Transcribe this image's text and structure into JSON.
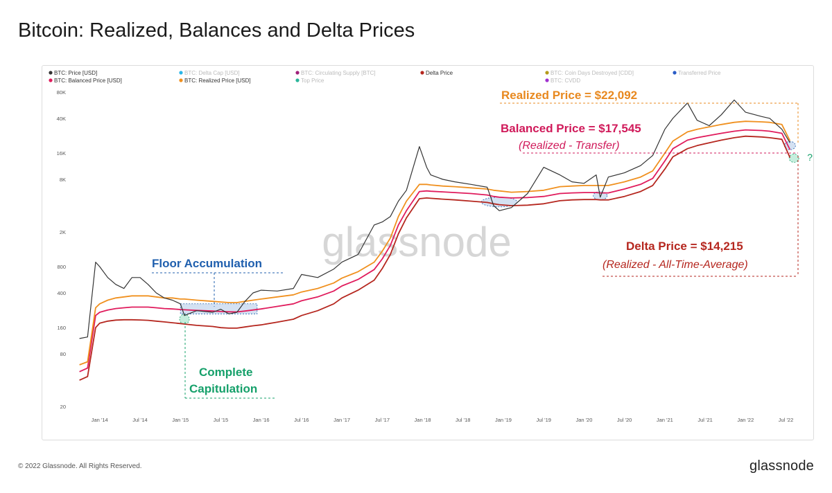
{
  "page": {
    "title": "Bitcoin: Realized, Balances and Delta Prices",
    "copyright": "© 2022 Glassnode. All Rights Reserved.",
    "logo": "glassnode",
    "watermark": "glassnode"
  },
  "chart_data": {
    "type": "line",
    "y_scale": "log",
    "ylim": [
      20,
      80000
    ],
    "y_ticks": [
      {
        "value": 20,
        "label": "20"
      },
      {
        "value": 80,
        "label": "80"
      },
      {
        "value": 160,
        "label": "160"
      },
      {
        "value": 400,
        "label": "400"
      },
      {
        "value": 800,
        "label": "800"
      },
      {
        "value": 2000,
        "label": "2K"
      },
      {
        "value": 8000,
        "label": "8K"
      },
      {
        "value": 16000,
        "label": "16K"
      },
      {
        "value": 40000,
        "label": "40K"
      },
      {
        "value": 80000,
        "label": "80K"
      }
    ],
    "x_ticks": [
      "Jan '14",
      "Jul '14",
      "Jan '15",
      "Jul '15",
      "Jan '16",
      "Jul '16",
      "Jan '17",
      "Jul '17",
      "Jan '18",
      "Jul '18",
      "Jan '19",
      "Jul '19",
      "Jan '20",
      "Jul '20",
      "Jan '21",
      "Jul '21",
      "Jan '22",
      "Jul '22"
    ],
    "legend": [
      {
        "label": "BTC: Price [USD]",
        "color": "#333333",
        "active": true
      },
      {
        "label": "BTC: Delta Cap [USD]",
        "color": "#29b6e8",
        "active": false
      },
      {
        "label": "BTC: Circulating Supply [BTC]",
        "color": "#a0207a",
        "active": false
      },
      {
        "label": "Delta Price",
        "color": "#b5261e",
        "active": true
      },
      {
        "label": "BTC: Coin Days Destroyed [CDD]",
        "color": "#b59a1a",
        "active": false
      },
      {
        "label": "Transferred Price",
        "color": "#2a5cc6",
        "active": false
      },
      {
        "label": "BTC: Balanced Price [USD]",
        "color": "#e01b5c",
        "active": true
      },
      {
        "label": "BTC: Realized Price [USD]",
        "color": "#f0901e",
        "active": true
      },
      {
        "label": "Top Price",
        "color": "#2ab59a",
        "active": false
      },
      {
        "label": "BTC: CVDD",
        "color": "#a030d0",
        "active": false
      }
    ],
    "x": [
      2013.75,
      2013.85,
      2013.95,
      2014.0,
      2014.1,
      2014.2,
      2014.3,
      2014.4,
      2014.5,
      2014.6,
      2014.7,
      2014.8,
      2014.9,
      2015.0,
      2015.05,
      2015.2,
      2015.4,
      2015.5,
      2015.6,
      2015.7,
      2015.8,
      2015.9,
      2016.0,
      2016.2,
      2016.4,
      2016.5,
      2016.7,
      2016.9,
      2017.0,
      2017.2,
      2017.4,
      2017.5,
      2017.6,
      2017.7,
      2017.8,
      2017.96,
      2018.05,
      2018.1,
      2018.25,
      2018.4,
      2018.6,
      2018.8,
      2018.88,
      2018.95,
      2019.1,
      2019.3,
      2019.5,
      2019.7,
      2019.85,
      2020.0,
      2020.15,
      2020.2,
      2020.3,
      2020.5,
      2020.7,
      2020.85,
      2021.0,
      2021.1,
      2021.28,
      2021.4,
      2021.55,
      2021.7,
      2021.86,
      2022.0,
      2022.2,
      2022.3,
      2022.45,
      2022.55
    ],
    "series": [
      {
        "name": "BTC: Price [USD]",
        "color": "#333333",
        "values": [
          120,
          125,
          900,
          800,
          600,
          500,
          450,
          600,
          600,
          500,
          400,
          350,
          330,
          300,
          220,
          250,
          240,
          260,
          230,
          240,
          320,
          400,
          430,
          420,
          450,
          650,
          600,
          750,
          900,
          1100,
          2400,
          2600,
          3000,
          4500,
          6000,
          19000,
          11000,
          9000,
          8000,
          7500,
          7000,
          6500,
          4000,
          3500,
          3800,
          5500,
          11000,
          9000,
          7500,
          7200,
          9000,
          5000,
          8500,
          9500,
          11500,
          15000,
          30000,
          40000,
          60000,
          38000,
          33000,
          44000,
          65000,
          47000,
          42000,
          40000,
          30000,
          21000
        ]
      },
      {
        "name": "BTC: Realized Price [USD]",
        "color": "#f0901e",
        "values": [
          60,
          65,
          270,
          300,
          330,
          350,
          360,
          370,
          370,
          370,
          360,
          350,
          350,
          340,
          340,
          330,
          320,
          315,
          310,
          310,
          320,
          330,
          340,
          360,
          380,
          410,
          450,
          520,
          590,
          700,
          900,
          1200,
          1700,
          3000,
          4500,
          7000,
          7000,
          6900,
          6700,
          6600,
          6400,
          6200,
          6000,
          5900,
          5700,
          5800,
          6000,
          6600,
          6700,
          6800,
          6800,
          6800,
          6800,
          7500,
          8500,
          10000,
          16000,
          22000,
          28000,
          30000,
          32000,
          34000,
          36000,
          37000,
          36500,
          36000,
          34000,
          22092
        ]
      },
      {
        "name": "BTC: Balanced Price [USD]",
        "color": "#e01b5c",
        "values": [
          50,
          55,
          220,
          240,
          255,
          265,
          270,
          275,
          275,
          275,
          270,
          265,
          262,
          258,
          256,
          252,
          248,
          245,
          243,
          242,
          248,
          255,
          262,
          280,
          300,
          325,
          360,
          420,
          480,
          570,
          740,
          980,
          1400,
          2400,
          3500,
          5800,
          5900,
          5850,
          5750,
          5650,
          5500,
          5300,
          5100,
          5000,
          4900,
          4950,
          5100,
          5500,
          5600,
          5650,
          5650,
          5600,
          5600,
          6200,
          7000,
          8200,
          13000,
          18000,
          22500,
          24000,
          25500,
          27000,
          28500,
          29500,
          29000,
          28500,
          27000,
          17545
        ]
      },
      {
        "name": "Delta Price",
        "color": "#b5261e",
        "values": [
          40,
          44,
          160,
          180,
          190,
          195,
          197,
          197,
          196,
          194,
          190,
          186,
          182,
          178,
          176,
          170,
          165,
          160,
          158,
          158,
          163,
          168,
          172,
          185,
          200,
          220,
          250,
          300,
          350,
          430,
          560,
          760,
          1100,
          1900,
          2900,
          4800,
          4900,
          4850,
          4750,
          4650,
          4500,
          4350,
          4200,
          4100,
          4000,
          4050,
          4200,
          4550,
          4650,
          4700,
          4700,
          4650,
          4650,
          5100,
          5800,
          6800,
          10500,
          14500,
          18000,
          19500,
          21000,
          22500,
          24000,
          25000,
          24500,
          24000,
          23000,
          14215
        ]
      }
    ],
    "annotations": {
      "realized": "Realized Price = $22,092",
      "balanced": "Balanced Price = $17,545",
      "balanced_sub": "(Realized - Transfer)",
      "delta": "Delta Price = $14,215",
      "delta_sub": "(Realized - All-Time-Average)",
      "floor": "Floor Accumulation",
      "capitulation_line1": "Complete",
      "capitulation_line2": "Capitulation",
      "question": "?"
    }
  }
}
